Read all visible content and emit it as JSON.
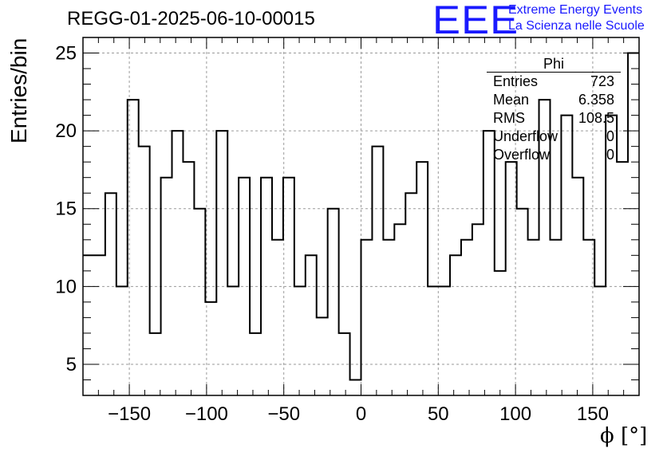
{
  "title": "REGG-01-2025-06-10-00015",
  "logo": {
    "mark": "EEE",
    "line1": "Extreme Energy Events",
    "line2": "La Scienza nelle Scuole",
    "color": "#1a1aff"
  },
  "stats_box": {
    "title": "Phi",
    "rows": [
      {
        "label": "Entries",
        "value": "723"
      },
      {
        "label": "Mean",
        "value": "6.358"
      },
      {
        "label": "RMS",
        "value": "108.5"
      },
      {
        "label": "Underflow",
        "value": "0"
      },
      {
        "label": "Overflow",
        "value": "0"
      }
    ]
  },
  "chart_data": {
    "type": "histogram",
    "xlabel": "ϕ [°]",
    "ylabel": "Entries/bin",
    "xlim": [
      -180,
      180
    ],
    "ylim": [
      3,
      26
    ],
    "grid": true,
    "bin_width": 7.2,
    "x_ticks": [
      -150,
      -100,
      -50,
      0,
      50,
      100,
      150
    ],
    "x_tick_labels": [
      "−150",
      "−100",
      "−50",
      "0",
      "50",
      "100",
      "150"
    ],
    "y_ticks": [
      5,
      10,
      15,
      20,
      25
    ],
    "y_tick_labels": [
      "5",
      "10",
      "15",
      "20",
      "25"
    ],
    "values": [
      12,
      12,
      16,
      10,
      22,
      19,
      7,
      17,
      20,
      18,
      15,
      9,
      20,
      10,
      17,
      7,
      17,
      13,
      17,
      10,
      12,
      8,
      15,
      7,
      4,
      13,
      19,
      13,
      14,
      16,
      18,
      10,
      10,
      12,
      13,
      14,
      20,
      11,
      18,
      15,
      13,
      22,
      13,
      21,
      17,
      13,
      10,
      21,
      18,
      25
    ]
  }
}
